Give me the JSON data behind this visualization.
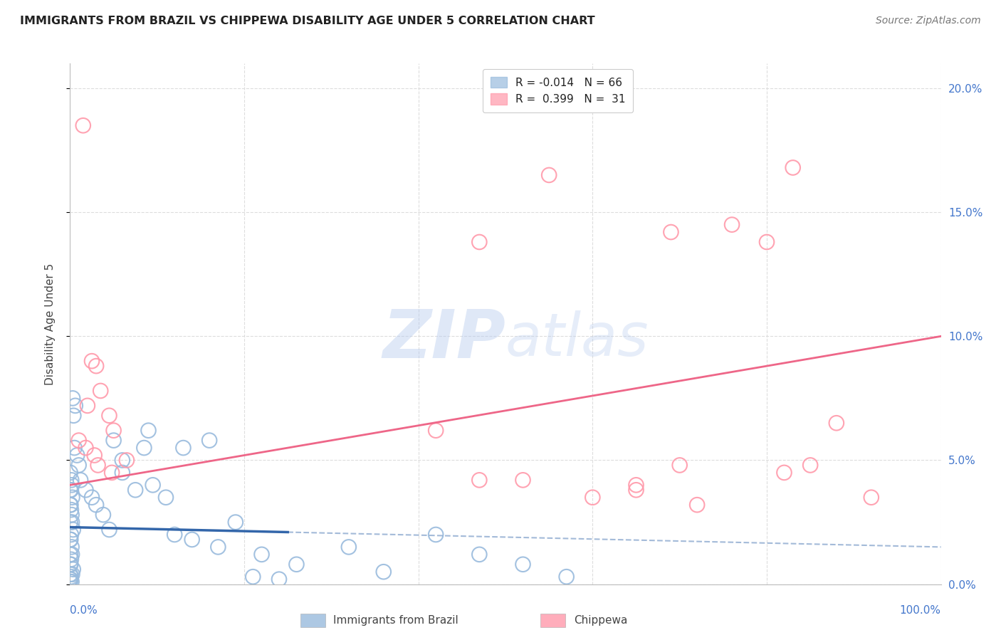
{
  "title": "IMMIGRANTS FROM BRAZIL VS CHIPPEWA DISABILITY AGE UNDER 5 CORRELATION CHART",
  "source": "Source: ZipAtlas.com",
  "ylabel": "Disability Age Under 5",
  "ytick_vals": [
    0,
    5,
    10,
    15,
    20
  ],
  "xtick_vals": [
    0,
    20,
    40,
    60,
    80,
    100
  ],
  "legend_blue_r": "R = -0.014",
  "legend_blue_n": "N = 66",
  "legend_pink_r": "R =  0.399",
  "legend_pink_n": "N =  31",
  "blue_color": "#99BBDD",
  "pink_color": "#FF99AA",
  "blue_line_color": "#3366AA",
  "pink_line_color": "#EE6688",
  "blue_points": [
    [
      0.3,
      7.5
    ],
    [
      0.6,
      7.2
    ],
    [
      0.4,
      6.8
    ],
    [
      0.15,
      4.2
    ],
    [
      0.2,
      4.0
    ],
    [
      0.1,
      3.8
    ],
    [
      0.25,
      3.5
    ],
    [
      0.08,
      3.2
    ],
    [
      0.12,
      3.0
    ],
    [
      0.18,
      2.8
    ],
    [
      0.22,
      2.5
    ],
    [
      0.35,
      2.2
    ],
    [
      0.12,
      2.0
    ],
    [
      0.07,
      1.8
    ],
    [
      0.18,
      1.5
    ],
    [
      0.22,
      1.2
    ],
    [
      0.12,
      1.0
    ],
    [
      0.07,
      0.8
    ],
    [
      0.35,
      0.6
    ],
    [
      0.25,
      0.4
    ],
    [
      0.12,
      0.3
    ],
    [
      0.07,
      0.2
    ],
    [
      0.18,
      0.1
    ],
    [
      0.02,
      4.5
    ],
    [
      0.02,
      3.8
    ],
    [
      0.02,
      3.2
    ],
    [
      0.02,
      2.5
    ],
    [
      0.02,
      1.8
    ],
    [
      0.02,
      1.2
    ],
    [
      0.02,
      0.8
    ],
    [
      0.02,
      0.4
    ],
    [
      0.02,
      0.2
    ],
    [
      0.02,
      0.1
    ],
    [
      0.5,
      5.5
    ],
    [
      0.8,
      5.2
    ],
    [
      1.0,
      4.8
    ],
    [
      1.2,
      4.2
    ],
    [
      1.8,
      3.8
    ],
    [
      2.5,
      3.5
    ],
    [
      3.0,
      3.2
    ],
    [
      3.8,
      2.8
    ],
    [
      4.5,
      2.2
    ],
    [
      5.0,
      5.8
    ],
    [
      6.0,
      4.5
    ],
    [
      7.5,
      3.8
    ],
    [
      8.5,
      5.5
    ],
    [
      9.5,
      4.0
    ],
    [
      11.0,
      3.5
    ],
    [
      12.0,
      2.0
    ],
    [
      14.0,
      1.8
    ],
    [
      17.0,
      1.5
    ],
    [
      19.0,
      2.5
    ],
    [
      22.0,
      1.2
    ],
    [
      26.0,
      0.8
    ],
    [
      32.0,
      1.5
    ],
    [
      36.0,
      0.5
    ],
    [
      42.0,
      2.0
    ],
    [
      47.0,
      1.2
    ],
    [
      52.0,
      0.8
    ],
    [
      57.0,
      0.3
    ],
    [
      13.0,
      5.5
    ],
    [
      9.0,
      6.2
    ],
    [
      6.0,
      5.0
    ],
    [
      16.0,
      5.8
    ],
    [
      21.0,
      0.3
    ],
    [
      24.0,
      0.2
    ]
  ],
  "pink_points": [
    [
      1.5,
      18.5
    ],
    [
      2.5,
      9.0
    ],
    [
      3.0,
      8.8
    ],
    [
      3.5,
      7.8
    ],
    [
      2.0,
      7.2
    ],
    [
      4.5,
      6.8
    ],
    [
      5.0,
      6.2
    ],
    [
      1.0,
      5.8
    ],
    [
      1.8,
      5.5
    ],
    [
      2.8,
      5.2
    ],
    [
      6.5,
      5.0
    ],
    [
      3.2,
      4.8
    ],
    [
      4.8,
      4.5
    ],
    [
      55.0,
      16.5
    ],
    [
      47.0,
      13.8
    ],
    [
      69.0,
      14.2
    ],
    [
      80.0,
      13.8
    ],
    [
      47.0,
      4.2
    ],
    [
      60.0,
      3.5
    ],
    [
      65.0,
      3.8
    ],
    [
      70.0,
      4.8
    ],
    [
      82.0,
      4.5
    ],
    [
      88.0,
      6.5
    ],
    [
      52.0,
      4.2
    ],
    [
      65.0,
      4.0
    ],
    [
      72.0,
      3.2
    ],
    [
      85.0,
      4.8
    ],
    [
      83.0,
      16.8
    ],
    [
      76.0,
      14.5
    ],
    [
      92.0,
      3.5
    ],
    [
      42.0,
      6.2
    ]
  ],
  "blue_trend": {
    "x_start": 0,
    "x_end": 100,
    "y_start": 2.3,
    "y_end": 1.5
  },
  "blue_solid_end": 25,
  "pink_trend": {
    "x_start": 0,
    "x_end": 100,
    "y_start": 4.0,
    "y_end": 10.0
  },
  "xlim": [
    0,
    100
  ],
  "ylim": [
    0,
    21
  ],
  "background_color": "#FFFFFF",
  "grid_color": "#DDDDDD"
}
